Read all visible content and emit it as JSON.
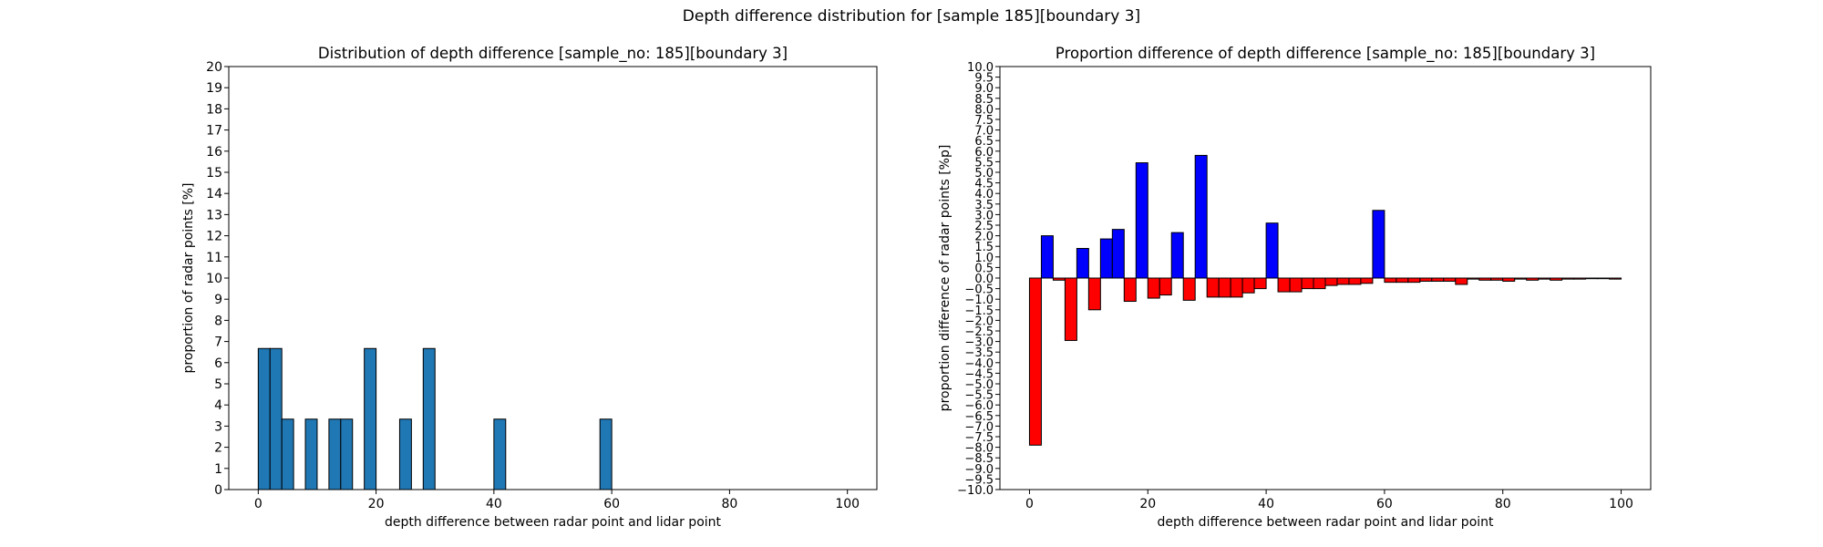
{
  "figure": {
    "suptitle": "Depth difference distribution for [sample 185][boundary 3]"
  },
  "chart_data": [
    {
      "type": "bar",
      "title": "Distribution of depth difference [sample_no: 185][boundary 3]",
      "xlabel": "depth difference between radar point and lidar point",
      "ylabel": "proportion of radar points [%]",
      "xlim": [
        -5,
        105
      ],
      "ylim": [
        0,
        20
      ],
      "xticks": [
        0,
        20,
        40,
        60,
        80,
        100
      ],
      "yticks": [
        0,
        1,
        2,
        3,
        4,
        5,
        6,
        7,
        8,
        9,
        10,
        11,
        12,
        13,
        14,
        15,
        16,
        17,
        18,
        19,
        20
      ],
      "bar_width": 2,
      "x": [
        1,
        3,
        5,
        9,
        13,
        15,
        19,
        25,
        29,
        41,
        59
      ],
      "values": [
        6.67,
        6.67,
        3.33,
        3.33,
        3.33,
        3.33,
        6.67,
        3.33,
        6.67,
        3.33,
        3.33
      ],
      "color": "#1f77b4",
      "grid": false
    },
    {
      "type": "bar",
      "title": "Proportion difference of depth difference [sample_no: 185][boundary 3]",
      "xlabel": "depth difference between radar point and lidar point",
      "ylabel": "proportion difference of radar points [%p]",
      "xlim": [
        -5,
        105
      ],
      "ylim": [
        -10,
        10
      ],
      "xticks": [
        0,
        20,
        40,
        60,
        80,
        100
      ],
      "yticks": [
        -10.0,
        -9.5,
        -9.0,
        -8.5,
        -8.0,
        -7.5,
        -7.0,
        -6.5,
        -6.0,
        -5.5,
        -5.0,
        -4.5,
        -4.0,
        -3.5,
        -3.0,
        -2.5,
        -2.0,
        -1.5,
        -1.0,
        -0.5,
        0.0,
        0.5,
        1.0,
        1.5,
        2.0,
        2.5,
        3.0,
        3.5,
        4.0,
        4.5,
        5.0,
        5.5,
        6.0,
        6.5,
        7.0,
        7.5,
        8.0,
        8.5,
        9.0,
        9.5,
        10.0
      ],
      "bar_width": 2,
      "x": [
        1,
        3,
        5,
        7,
        9,
        11,
        13,
        15,
        17,
        19,
        21,
        23,
        25,
        27,
        29,
        31,
        33,
        35,
        37,
        39,
        41,
        43,
        45,
        47,
        49,
        51,
        53,
        55,
        57,
        59,
        61,
        63,
        65,
        67,
        69,
        71,
        73,
        75,
        77,
        79,
        81,
        83,
        85,
        87,
        89,
        91,
        93,
        95,
        97,
        99
      ],
      "values": [
        -7.9,
        2.0,
        -0.1,
        -2.95,
        1.4,
        -1.5,
        1.85,
        2.3,
        -1.1,
        5.45,
        -0.95,
        -0.8,
        2.15,
        -1.05,
        5.8,
        -0.9,
        -0.9,
        -0.9,
        -0.7,
        -0.5,
        2.6,
        -0.65,
        -0.65,
        -0.5,
        -0.5,
        -0.35,
        -0.3,
        -0.3,
        -0.25,
        3.2,
        -0.2,
        -0.2,
        -0.2,
        -0.15,
        -0.15,
        -0.15,
        -0.3,
        -0.05,
        -0.1,
        -0.1,
        -0.15,
        -0.05,
        -0.1,
        -0.05,
        -0.1,
        -0.05,
        -0.05,
        -0.03,
        -0.03,
        -0.05
      ],
      "positive_color": "#0000ff",
      "negative_color": "#ff0000",
      "grid": false
    }
  ]
}
